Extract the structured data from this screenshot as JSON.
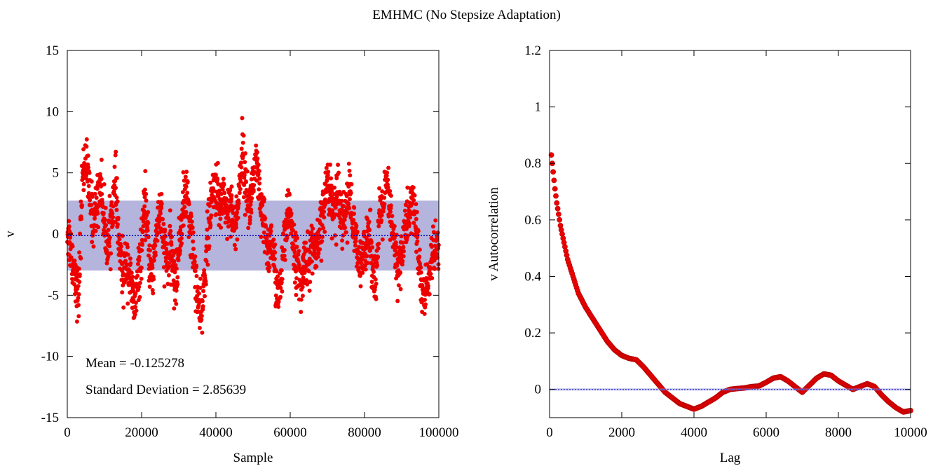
{
  "figure": {
    "title": "EMHMC (No Stepsize Adaptation)"
  },
  "chart_data": [
    {
      "type": "scatter",
      "xlabel": "Sample",
      "ylabel": "v",
      "xlim": [
        0,
        100000
      ],
      "ylim": [
        -15,
        15
      ],
      "xticks": [
        0,
        20000,
        40000,
        60000,
        80000,
        100000
      ],
      "yticks": [
        -15,
        -10,
        -5,
        0,
        5,
        10,
        15
      ],
      "grid": false,
      "mean": -0.125278,
      "std": 2.85639,
      "annotations": [
        "Mean = -0.125278",
        "Standard Deviation = 2.85639"
      ],
      "band": {
        "from": -2.98,
        "to": 2.73,
        "color": "#b4b4dc"
      },
      "mean_line": {
        "y": -0.125278,
        "color": "#0000cc"
      },
      "point_color": "#ee0000",
      "trace": [
        [
          0,
          0.5
        ],
        [
          1000,
          -1.5
        ],
        [
          2000,
          -3.0
        ],
        [
          3000,
          -5.5
        ],
        [
          4000,
          4.5
        ],
        [
          5000,
          6.2
        ],
        [
          6000,
          3.0
        ],
        [
          7000,
          1.0
        ],
        [
          8000,
          2.5
        ],
        [
          9000,
          4.5
        ],
        [
          10000,
          0.5
        ],
        [
          11000,
          -1.0
        ],
        [
          12000,
          2.0
        ],
        [
          13000,
          4.0
        ],
        [
          14000,
          -1.5
        ],
        [
          15000,
          -3.5
        ],
        [
          16000,
          -2.0
        ],
        [
          17000,
          -4.0
        ],
        [
          18000,
          -6.0
        ],
        [
          19000,
          -4.0
        ],
        [
          20000,
          -1.0
        ],
        [
          21000,
          2.5
        ],
        [
          22000,
          -2.0
        ],
        [
          23000,
          -3.5
        ],
        [
          24000,
          0.5
        ],
        [
          25000,
          2.0
        ],
        [
          26000,
          -1.0
        ],
        [
          27000,
          -2.5
        ],
        [
          28000,
          -1.0
        ],
        [
          29000,
          -4.5
        ],
        [
          30000,
          -1.5
        ],
        [
          31000,
          2.0
        ],
        [
          32000,
          3.5
        ],
        [
          33000,
          1.0
        ],
        [
          34000,
          -2.0
        ],
        [
          35000,
          -5.0
        ],
        [
          36000,
          -7.5
        ],
        [
          37000,
          -3.0
        ],
        [
          38000,
          0.5
        ],
        [
          39000,
          3.0
        ],
        [
          40000,
          4.0
        ],
        [
          41000,
          2.0
        ],
        [
          42000,
          3.5
        ],
        [
          43000,
          1.5
        ],
        [
          44000,
          3.0
        ],
        [
          45000,
          0.0
        ],
        [
          46000,
          2.5
        ],
        [
          47000,
          7.0
        ],
        [
          48000,
          4.0
        ],
        [
          49000,
          2.0
        ],
        [
          50000,
          4.5
        ],
        [
          51000,
          5.5
        ],
        [
          52000,
          2.0
        ],
        [
          53000,
          0.5
        ],
        [
          54000,
          -1.5
        ],
        [
          55000,
          -0.5
        ],
        [
          56000,
          -3.5
        ],
        [
          57000,
          -5.5
        ],
        [
          58000,
          -2.0
        ],
        [
          59000,
          0.5
        ],
        [
          60000,
          2.0
        ],
        [
          61000,
          -1.0
        ],
        [
          62000,
          -3.0
        ],
        [
          63000,
          -4.5
        ],
        [
          64000,
          -1.5
        ],
        [
          65000,
          -2.5
        ],
        [
          66000,
          -0.5
        ],
        [
          67000,
          -2.0
        ],
        [
          68000,
          0.0
        ],
        [
          69000,
          2.0
        ],
        [
          70000,
          4.5
        ],
        [
          71000,
          3.0
        ],
        [
          72000,
          2.0
        ],
        [
          73000,
          4.0
        ],
        [
          74000,
          1.0
        ],
        [
          75000,
          2.0
        ],
        [
          76000,
          3.5
        ],
        [
          77000,
          0.5
        ],
        [
          78000,
          -1.5
        ],
        [
          79000,
          -3.0
        ],
        [
          80000,
          -1.0
        ],
        [
          81000,
          0.5
        ],
        [
          82000,
          -2.0
        ],
        [
          83000,
          -4.0
        ],
        [
          84000,
          1.0
        ],
        [
          85000,
          2.5
        ],
        [
          86000,
          4.0
        ],
        [
          87000,
          1.5
        ],
        [
          88000,
          -1.0
        ],
        [
          89000,
          -3.0
        ],
        [
          90000,
          -1.5
        ],
        [
          91000,
          0.5
        ],
        [
          92000,
          1.5
        ],
        [
          93000,
          3.0
        ],
        [
          94000,
          0.0
        ],
        [
          95000,
          -3.5
        ],
        [
          96000,
          -5.5
        ],
        [
          97000,
          -4.0
        ],
        [
          98000,
          -2.0
        ],
        [
          99000,
          -1.5
        ],
        [
          100000,
          -2.0
        ]
      ]
    },
    {
      "type": "scatter",
      "xlabel": "Lag",
      "ylabel": "v Autocorrelation",
      "xlim": [
        0,
        10000
      ],
      "ylim": [
        -0.1,
        1.2
      ],
      "xticks": [
        0,
        2000,
        4000,
        6000,
        8000,
        10000
      ],
      "yticks": [
        0,
        0.2,
        0.4,
        0.6,
        0.8,
        1,
        1.2
      ],
      "grid": false,
      "zero_line": {
        "y": 0,
        "color": "#0000cc"
      },
      "point_color": "#ee0000",
      "curve": [
        [
          50,
          0.83
        ],
        [
          100,
          0.77
        ],
        [
          150,
          0.71
        ],
        [
          200,
          0.66
        ],
        [
          300,
          0.58
        ],
        [
          400,
          0.52
        ],
        [
          500,
          0.46
        ],
        [
          600,
          0.42
        ],
        [
          700,
          0.38
        ],
        [
          800,
          0.34
        ],
        [
          1000,
          0.29
        ],
        [
          1200,
          0.25
        ],
        [
          1400,
          0.21
        ],
        [
          1600,
          0.17
        ],
        [
          1800,
          0.14
        ],
        [
          2000,
          0.12
        ],
        [
          2200,
          0.11
        ],
        [
          2400,
          0.105
        ],
        [
          2600,
          0.08
        ],
        [
          2800,
          0.05
        ],
        [
          3000,
          0.02
        ],
        [
          3200,
          -0.01
        ],
        [
          3400,
          -0.03
        ],
        [
          3600,
          -0.05
        ],
        [
          3800,
          -0.06
        ],
        [
          4000,
          -0.07
        ],
        [
          4200,
          -0.06
        ],
        [
          4400,
          -0.045
        ],
        [
          4600,
          -0.03
        ],
        [
          4800,
          -0.01
        ],
        [
          5000,
          0.0
        ],
        [
          5200,
          0.003
        ],
        [
          5400,
          0.005
        ],
        [
          5600,
          0.01
        ],
        [
          5800,
          0.012
        ],
        [
          6000,
          0.025
        ],
        [
          6200,
          0.04
        ],
        [
          6400,
          0.045
        ],
        [
          6600,
          0.03
        ],
        [
          6800,
          0.01
        ],
        [
          7000,
          -0.01
        ],
        [
          7200,
          0.015
        ],
        [
          7400,
          0.04
        ],
        [
          7600,
          0.055
        ],
        [
          7800,
          0.05
        ],
        [
          8000,
          0.03
        ],
        [
          8200,
          0.015
        ],
        [
          8400,
          0.0
        ],
        [
          8600,
          0.01
        ],
        [
          8800,
          0.02
        ],
        [
          9000,
          0.01
        ],
        [
          9200,
          -0.02
        ],
        [
          9400,
          -0.045
        ],
        [
          9600,
          -0.065
        ],
        [
          9800,
          -0.08
        ],
        [
          10000,
          -0.075
        ]
      ]
    }
  ]
}
